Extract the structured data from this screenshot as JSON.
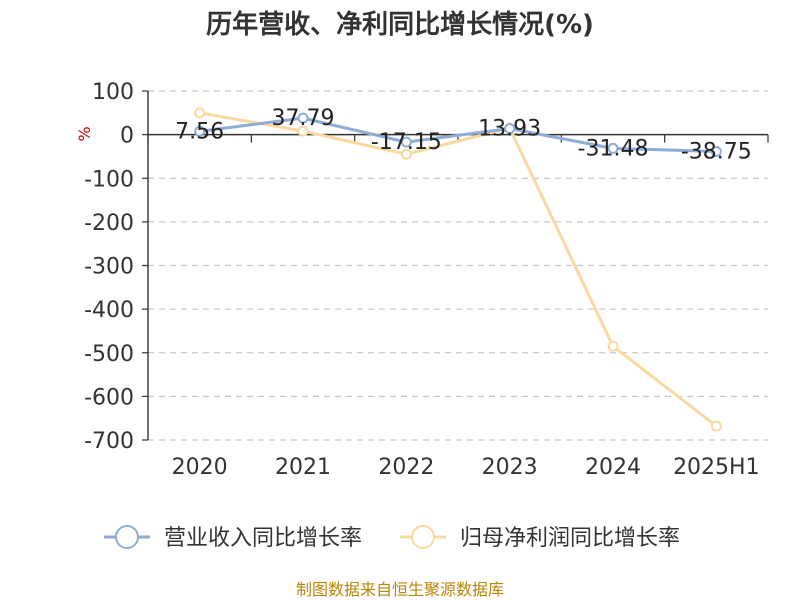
{
  "chart_data": {
    "type": "line",
    "title": "历年营收、净利同比增长情况(%)",
    "ylabel": "%",
    "categories": [
      "2020",
      "2021",
      "2022",
      "2023",
      "2024",
      "2025H1"
    ],
    "ylim": [
      -700,
      100
    ],
    "yticks": [
      "100",
      "0",
      "-100",
      "-200",
      "-300",
      "-400",
      "-500",
      "-600",
      "-700"
    ],
    "grid": true,
    "legend_position": "bottom",
    "series": [
      {
        "name": "营业收入同比增长率",
        "color": "#8eacd6",
        "values": [
          7.56,
          37.79,
          -17.15,
          13.93,
          -31.48,
          -38.75
        ],
        "labels": [
          "7.56",
          "37.79",
          "-17.15",
          "13.93",
          "-31.48",
          "-38.75"
        ]
      },
      {
        "name": "归母净利润同比增长率",
        "color": "#f9d9a0",
        "values": [
          50,
          8,
          -45,
          15,
          -485,
          -668
        ]
      }
    ]
  },
  "source": "制图数据来自恒生聚源数据库"
}
